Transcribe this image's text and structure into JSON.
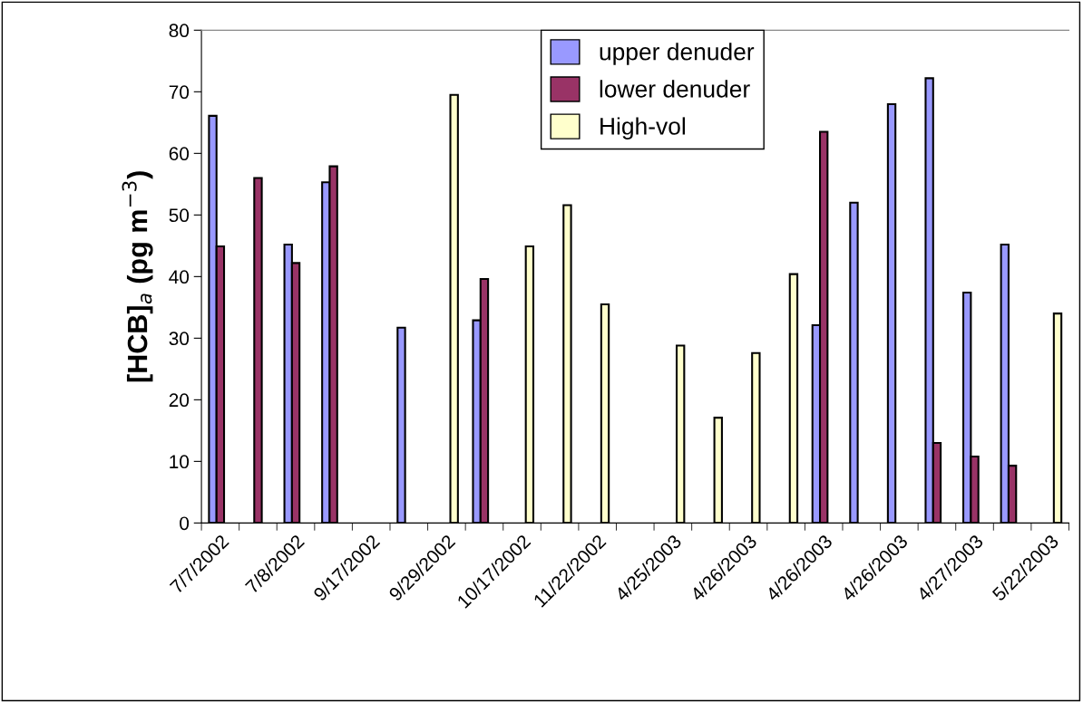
{
  "chart_data": {
    "type": "bar",
    "ylabel": "[HCB]$_{a}$ (pg m$^{−3}$)",
    "categories": [
      "7/7/2002",
      null,
      "7/8/2002",
      null,
      "9/17/2002",
      null,
      "9/29/2002",
      null,
      "10/17/2002",
      null,
      "11/22/2002",
      null,
      "4/25/2003",
      null,
      "4/26/2003",
      null,
      "4/26/2003",
      null,
      "4/26/2003",
      null,
      "4/27/2003",
      null,
      "5/22/2003"
    ],
    "series": [
      {
        "name": "upper denuder",
        "color": "#9999ff",
        "values": [
          66.1,
          null,
          45.2,
          55.3,
          null,
          31.7,
          null,
          32.9,
          null,
          null,
          null,
          null,
          null,
          null,
          null,
          null,
          32.1,
          52.0,
          68.0,
          72.2,
          37.4,
          45.2,
          null
        ]
      },
      {
        "name": "lower denuder",
        "color": "#993366",
        "values": [
          44.9,
          56.0,
          42.2,
          57.9,
          null,
          null,
          null,
          39.6,
          null,
          null,
          null,
          null,
          null,
          null,
          null,
          null,
          63.5,
          null,
          null,
          13.0,
          10.8,
          9.3,
          null
        ]
      },
      {
        "name": "High-vol",
        "color": "#ffffcc",
        "values": [
          null,
          null,
          null,
          null,
          null,
          null,
          69.5,
          null,
          44.9,
          51.6,
          35.5,
          null,
          28.8,
          17.1,
          27.6,
          40.4,
          null,
          null,
          null,
          null,
          null,
          null,
          34.0
        ]
      }
    ],
    "ylim": [
      0,
      80
    ],
    "yticks": [
      0,
      10,
      20,
      30,
      40,
      50,
      60,
      70,
      80
    ],
    "grid": false,
    "legend": "top"
  }
}
